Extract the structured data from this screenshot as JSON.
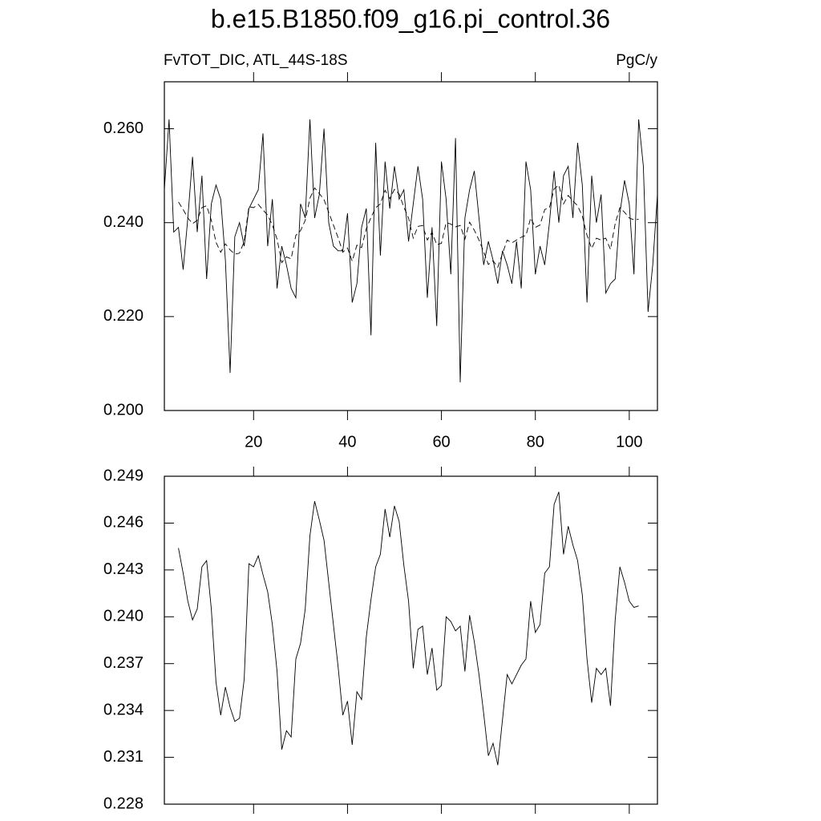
{
  "chart_data": [
    {
      "type": "line",
      "title": "b.e15.B1850.f09_g16.pi_control.36",
      "left_label": "FvTOT_DIC, ATL_44S-18S",
      "right_label": "PgC/y",
      "xlim": [
        1,
        106
      ],
      "xticks": [
        20,
        40,
        60,
        80,
        100
      ],
      "ylim": [
        0.2,
        0.27
      ],
      "yticks": [
        {
          "value": 0.2,
          "label": "0.200"
        },
        {
          "value": 0.22,
          "label": "0.220"
        },
        {
          "value": 0.24,
          "label": "0.240"
        },
        {
          "value": 0.26,
          "label": "0.260"
        }
      ],
      "series": [
        {
          "color": "#000000",
          "dashed": false,
          "x": [
            1,
            2,
            3,
            4,
            5,
            6,
            7,
            8,
            9,
            10,
            11,
            12,
            13,
            14,
            15,
            16,
            17,
            18,
            19,
            20,
            21,
            22,
            23,
            24,
            25,
            26,
            27,
            28,
            29,
            30,
            31,
            32,
            33,
            34,
            35,
            36,
            37,
            38,
            39,
            40,
            41,
            42,
            43,
            44,
            45,
            46,
            47,
            48,
            49,
            50,
            51,
            52,
            53,
            54,
            55,
            56,
            57,
            58,
            59,
            60,
            61,
            62,
            63,
            64,
            65,
            66,
            67,
            68,
            69,
            70,
            71,
            72,
            73,
            74,
            75,
            76,
            77,
            78,
            79,
            80,
            81,
            82,
            83,
            84,
            85,
            86,
            87,
            88,
            89,
            90,
            91,
            92,
            93,
            94,
            95,
            96,
            97,
            98,
            99,
            100,
            101,
            102,
            103,
            104,
            105,
            106
          ],
          "values": [
            0.247,
            0.262,
            0.238,
            0.239,
            0.23,
            0.241,
            0.254,
            0.238,
            0.25,
            0.228,
            0.244,
            0.248,
            0.245,
            0.232,
            0.208,
            0.237,
            0.24,
            0.235,
            0.243,
            0.245,
            0.247,
            0.259,
            0.235,
            0.245,
            0.226,
            0.235,
            0.231,
            0.226,
            0.224,
            0.244,
            0.241,
            0.262,
            0.241,
            0.246,
            0.26,
            0.24,
            0.235,
            0.234,
            0.234,
            0.242,
            0.223,
            0.227,
            0.239,
            0.243,
            0.216,
            0.257,
            0.233,
            0.253,
            0.243,
            0.252,
            0.245,
            0.247,
            0.236,
            0.244,
            0.252,
            0.245,
            0.224,
            0.239,
            0.218,
            0.253,
            0.245,
            0.229,
            0.258,
            0.206,
            0.241,
            0.247,
            0.251,
            0.241,
            0.231,
            0.236,
            0.232,
            0.227,
            0.234,
            0.231,
            0.227,
            0.236,
            0.226,
            0.253,
            0.247,
            0.229,
            0.235,
            0.231,
            0.24,
            0.251,
            0.24,
            0.25,
            0.252,
            0.241,
            0.257,
            0.248,
            0.223,
            0.25,
            0.24,
            0.246,
            0.225,
            0.227,
            0.228,
            0.242,
            0.249,
            0.244,
            0.229,
            0.262,
            0.252,
            0.221,
            0.231,
            0.246
          ]
        },
        {
          "color": "#000000",
          "dashed": true,
          "x": [
            4,
            5,
            6,
            7,
            8,
            9,
            10,
            11,
            12,
            13,
            14,
            15,
            16,
            17,
            18,
            19,
            20,
            21,
            22,
            23,
            24,
            25,
            26,
            27,
            28,
            29,
            30,
            31,
            32,
            33,
            34,
            35,
            36,
            37,
            38,
            39,
            40,
            41,
            42,
            43,
            44,
            45,
            46,
            47,
            48,
            49,
            50,
            51,
            52,
            53,
            54,
            55,
            56,
            57,
            58,
            59,
            60,
            61,
            62,
            63,
            64,
            65,
            66,
            67,
            68,
            69,
            70,
            71,
            72,
            73,
            74,
            75,
            76,
            77,
            78,
            79,
            80,
            81,
            82,
            83,
            84,
            85,
            86,
            87,
            88,
            89,
            90,
            91,
            92,
            93,
            94,
            95,
            96,
            97,
            98,
            99,
            100,
            101,
            102
          ],
          "values": [
            0.2444,
            0.2428,
            0.241,
            0.2398,
            0.2405,
            0.2432,
            0.2436,
            0.2405,
            0.2358,
            0.2337,
            0.2355,
            0.2342,
            0.2333,
            0.2335,
            0.236,
            0.2434,
            0.2432,
            0.2439,
            0.2427,
            0.2416,
            0.2395,
            0.2365,
            0.2315,
            0.2327,
            0.2323,
            0.2373,
            0.2383,
            0.2405,
            0.2452,
            0.2474,
            0.2462,
            0.2449,
            0.2422,
            0.2395,
            0.2368,
            0.2337,
            0.2346,
            0.2318,
            0.2352,
            0.2347,
            0.2387,
            0.2411,
            0.2432,
            0.244,
            0.2469,
            0.2451,
            0.2471,
            0.2461,
            0.2433,
            0.241,
            0.2367,
            0.2392,
            0.2394,
            0.2363,
            0.238,
            0.2353,
            0.2356,
            0.24,
            0.2397,
            0.2391,
            0.2394,
            0.2365,
            0.2401,
            0.2384,
            0.2363,
            0.2338,
            0.2311,
            0.2319,
            0.2305,
            0.2334,
            0.2363,
            0.2357,
            0.2363,
            0.2369,
            0.2373,
            0.241,
            0.239,
            0.2395,
            0.2428,
            0.2432,
            0.2472,
            0.248,
            0.244,
            0.2458,
            0.2446,
            0.2436,
            0.2414,
            0.2373,
            0.2345,
            0.2367,
            0.2363,
            0.2367,
            0.2343,
            0.2398,
            0.2432,
            0.2422,
            0.241,
            0.2406,
            0.2407
          ]
        }
      ]
    },
    {
      "type": "line",
      "xlim": [
        1,
        106
      ],
      "xticks": [
        20,
        40,
        60,
        80,
        100
      ],
      "ylim": [
        0.228,
        0.249
      ],
      "yticks": [
        {
          "value": 0.228,
          "label": "0.228"
        },
        {
          "value": 0.231,
          "label": "0.231"
        },
        {
          "value": 0.234,
          "label": "0.234"
        },
        {
          "value": 0.237,
          "label": "0.237"
        },
        {
          "value": 0.24,
          "label": "0.240"
        },
        {
          "value": 0.243,
          "label": "0.243"
        },
        {
          "value": 0.246,
          "label": "0.246"
        },
        {
          "value": 0.249,
          "label": "0.249"
        }
      ],
      "series": [
        {
          "color": "#000000",
          "dashed": false,
          "x": [
            4,
            5,
            6,
            7,
            8,
            9,
            10,
            11,
            12,
            13,
            14,
            15,
            16,
            17,
            18,
            19,
            20,
            21,
            22,
            23,
            24,
            25,
            26,
            27,
            28,
            29,
            30,
            31,
            32,
            33,
            34,
            35,
            36,
            37,
            38,
            39,
            40,
            41,
            42,
            43,
            44,
            45,
            46,
            47,
            48,
            49,
            50,
            51,
            52,
            53,
            54,
            55,
            56,
            57,
            58,
            59,
            60,
            61,
            62,
            63,
            64,
            65,
            66,
            67,
            68,
            69,
            70,
            71,
            72,
            73,
            74,
            75,
            76,
            77,
            78,
            79,
            80,
            81,
            82,
            83,
            84,
            85,
            86,
            87,
            88,
            89,
            90,
            91,
            92,
            93,
            94,
            95,
            96,
            97,
            98,
            99,
            100,
            101,
            102
          ],
          "values": [
            0.2444,
            0.2428,
            0.241,
            0.2398,
            0.2405,
            0.2432,
            0.2436,
            0.2405,
            0.2358,
            0.2337,
            0.2355,
            0.2342,
            0.2333,
            0.2335,
            0.236,
            0.2434,
            0.2432,
            0.2439,
            0.2427,
            0.2416,
            0.2395,
            0.2365,
            0.2315,
            0.2327,
            0.2323,
            0.2373,
            0.2383,
            0.2405,
            0.2452,
            0.2474,
            0.2462,
            0.2449,
            0.2422,
            0.2395,
            0.2368,
            0.2337,
            0.2346,
            0.2318,
            0.2352,
            0.2347,
            0.2387,
            0.2411,
            0.2432,
            0.244,
            0.2469,
            0.2451,
            0.2471,
            0.2461,
            0.2433,
            0.241,
            0.2367,
            0.2392,
            0.2394,
            0.2363,
            0.238,
            0.2353,
            0.2356,
            0.24,
            0.2397,
            0.2391,
            0.2394,
            0.2365,
            0.2401,
            0.2384,
            0.2363,
            0.2338,
            0.2311,
            0.2319,
            0.2305,
            0.2334,
            0.2363,
            0.2357,
            0.2363,
            0.2369,
            0.2373,
            0.241,
            0.239,
            0.2395,
            0.2428,
            0.2432,
            0.2472,
            0.248,
            0.244,
            0.2458,
            0.2446,
            0.2436,
            0.2414,
            0.2373,
            0.2345,
            0.2367,
            0.2363,
            0.2367,
            0.2343,
            0.2398,
            0.2432,
            0.2422,
            0.241,
            0.2406,
            0.2407
          ]
        }
      ]
    }
  ]
}
